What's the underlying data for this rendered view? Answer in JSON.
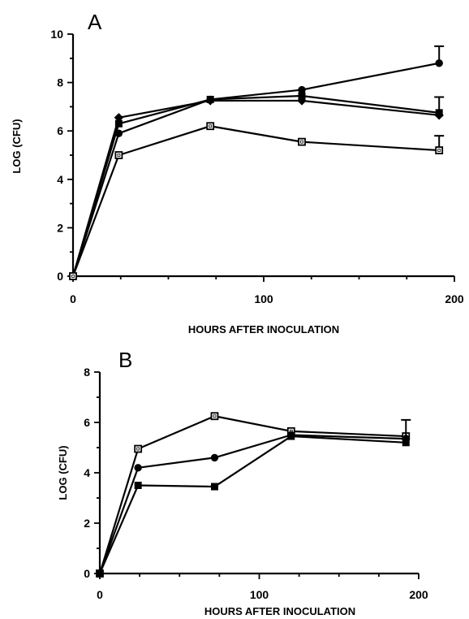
{
  "chart_data": [
    {
      "type": "line",
      "panel_label": "A",
      "xlabel": "HOURS AFTER INOCULATION",
      "ylabel": "LOG (CFU)",
      "xlim": [
        0,
        200
      ],
      "ylim": [
        0,
        10
      ],
      "xticks": [
        0,
        100,
        200
      ],
      "yticks": [
        0,
        2,
        4,
        6,
        8,
        10
      ],
      "grid": false,
      "series": [
        {
          "marker": "filled-circle",
          "x": [
            0,
            24,
            72,
            120,
            192
          ],
          "y": [
            0,
            5.9,
            7.3,
            7.7,
            8.8
          ],
          "error_up": [
            0,
            0,
            0,
            0,
            0.7
          ]
        },
        {
          "marker": "filled-square",
          "x": [
            0,
            24,
            72,
            120,
            192
          ],
          "y": [
            0,
            6.3,
            7.3,
            7.45,
            6.75
          ],
          "error_up": [
            0,
            0,
            0,
            0,
            0.65
          ]
        },
        {
          "marker": "filled-diamond",
          "x": [
            0,
            24,
            72,
            120,
            192
          ],
          "y": [
            0,
            6.55,
            7.25,
            7.25,
            6.65
          ],
          "error_up": [
            0,
            0,
            0,
            0,
            0
          ]
        },
        {
          "marker": "open-square",
          "x": [
            0,
            24,
            72,
            120,
            192
          ],
          "y": [
            0,
            5.0,
            6.2,
            5.55,
            5.2
          ],
          "error_up": [
            0,
            0,
            0,
            0,
            0.6
          ]
        }
      ]
    },
    {
      "type": "line",
      "panel_label": "B",
      "xlabel": "HOURS AFTER INOCULATION",
      "ylabel": "LOG (CFU)",
      "xlim": [
        0,
        200
      ],
      "ylim": [
        0,
        8
      ],
      "xticks": [
        0,
        100,
        200
      ],
      "yticks": [
        0,
        2,
        4,
        6,
        8
      ],
      "grid": false,
      "series": [
        {
          "marker": "open-square",
          "x": [
            0,
            24,
            72,
            120,
            192
          ],
          "y": [
            0,
            4.95,
            6.25,
            5.65,
            5.45
          ],
          "error_up": [
            0,
            0,
            0,
            0,
            0
          ]
        },
        {
          "marker": "filled-circle",
          "x": [
            0,
            24,
            72,
            120,
            192
          ],
          "y": [
            0,
            4.2,
            4.6,
            5.5,
            5.35
          ],
          "error_up": [
            0,
            0,
            0,
            0,
            0.75
          ]
        },
        {
          "marker": "filled-square",
          "x": [
            0,
            24,
            72,
            120,
            192
          ],
          "y": [
            0,
            3.5,
            3.45,
            5.45,
            5.2
          ],
          "error_up": [
            0,
            0,
            0,
            0,
            0
          ]
        }
      ]
    }
  ]
}
